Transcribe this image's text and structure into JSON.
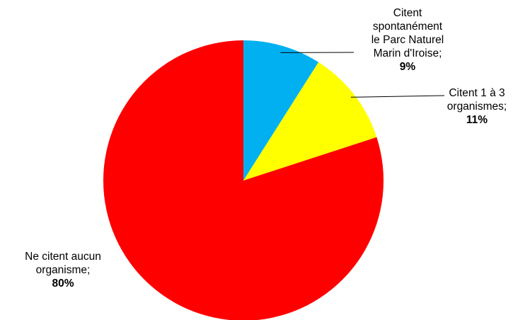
{
  "chart_data": {
    "type": "pie",
    "title": "",
    "slices": [
      {
        "label_lines": [
          "Citent",
          "spontanément",
          "le Parc Naturel",
          "Marin d'Iroise;"
        ],
        "value": 9,
        "pct_label": "9%",
        "color": "#00B0F0"
      },
      {
        "label_lines": [
          "Citent 1 à 3",
          "organismes;"
        ],
        "value": 11,
        "pct_label": "11%",
        "color": "#FFFF00"
      },
      {
        "label_lines": [
          "Ne citent aucun",
          "organisme;"
        ],
        "value": 80,
        "pct_label": "80%",
        "color": "#FF0000"
      }
    ],
    "start_angle": "12 o'clock",
    "direction": "clockwise",
    "legend": "none",
    "label_style": "outside with leader lines"
  }
}
